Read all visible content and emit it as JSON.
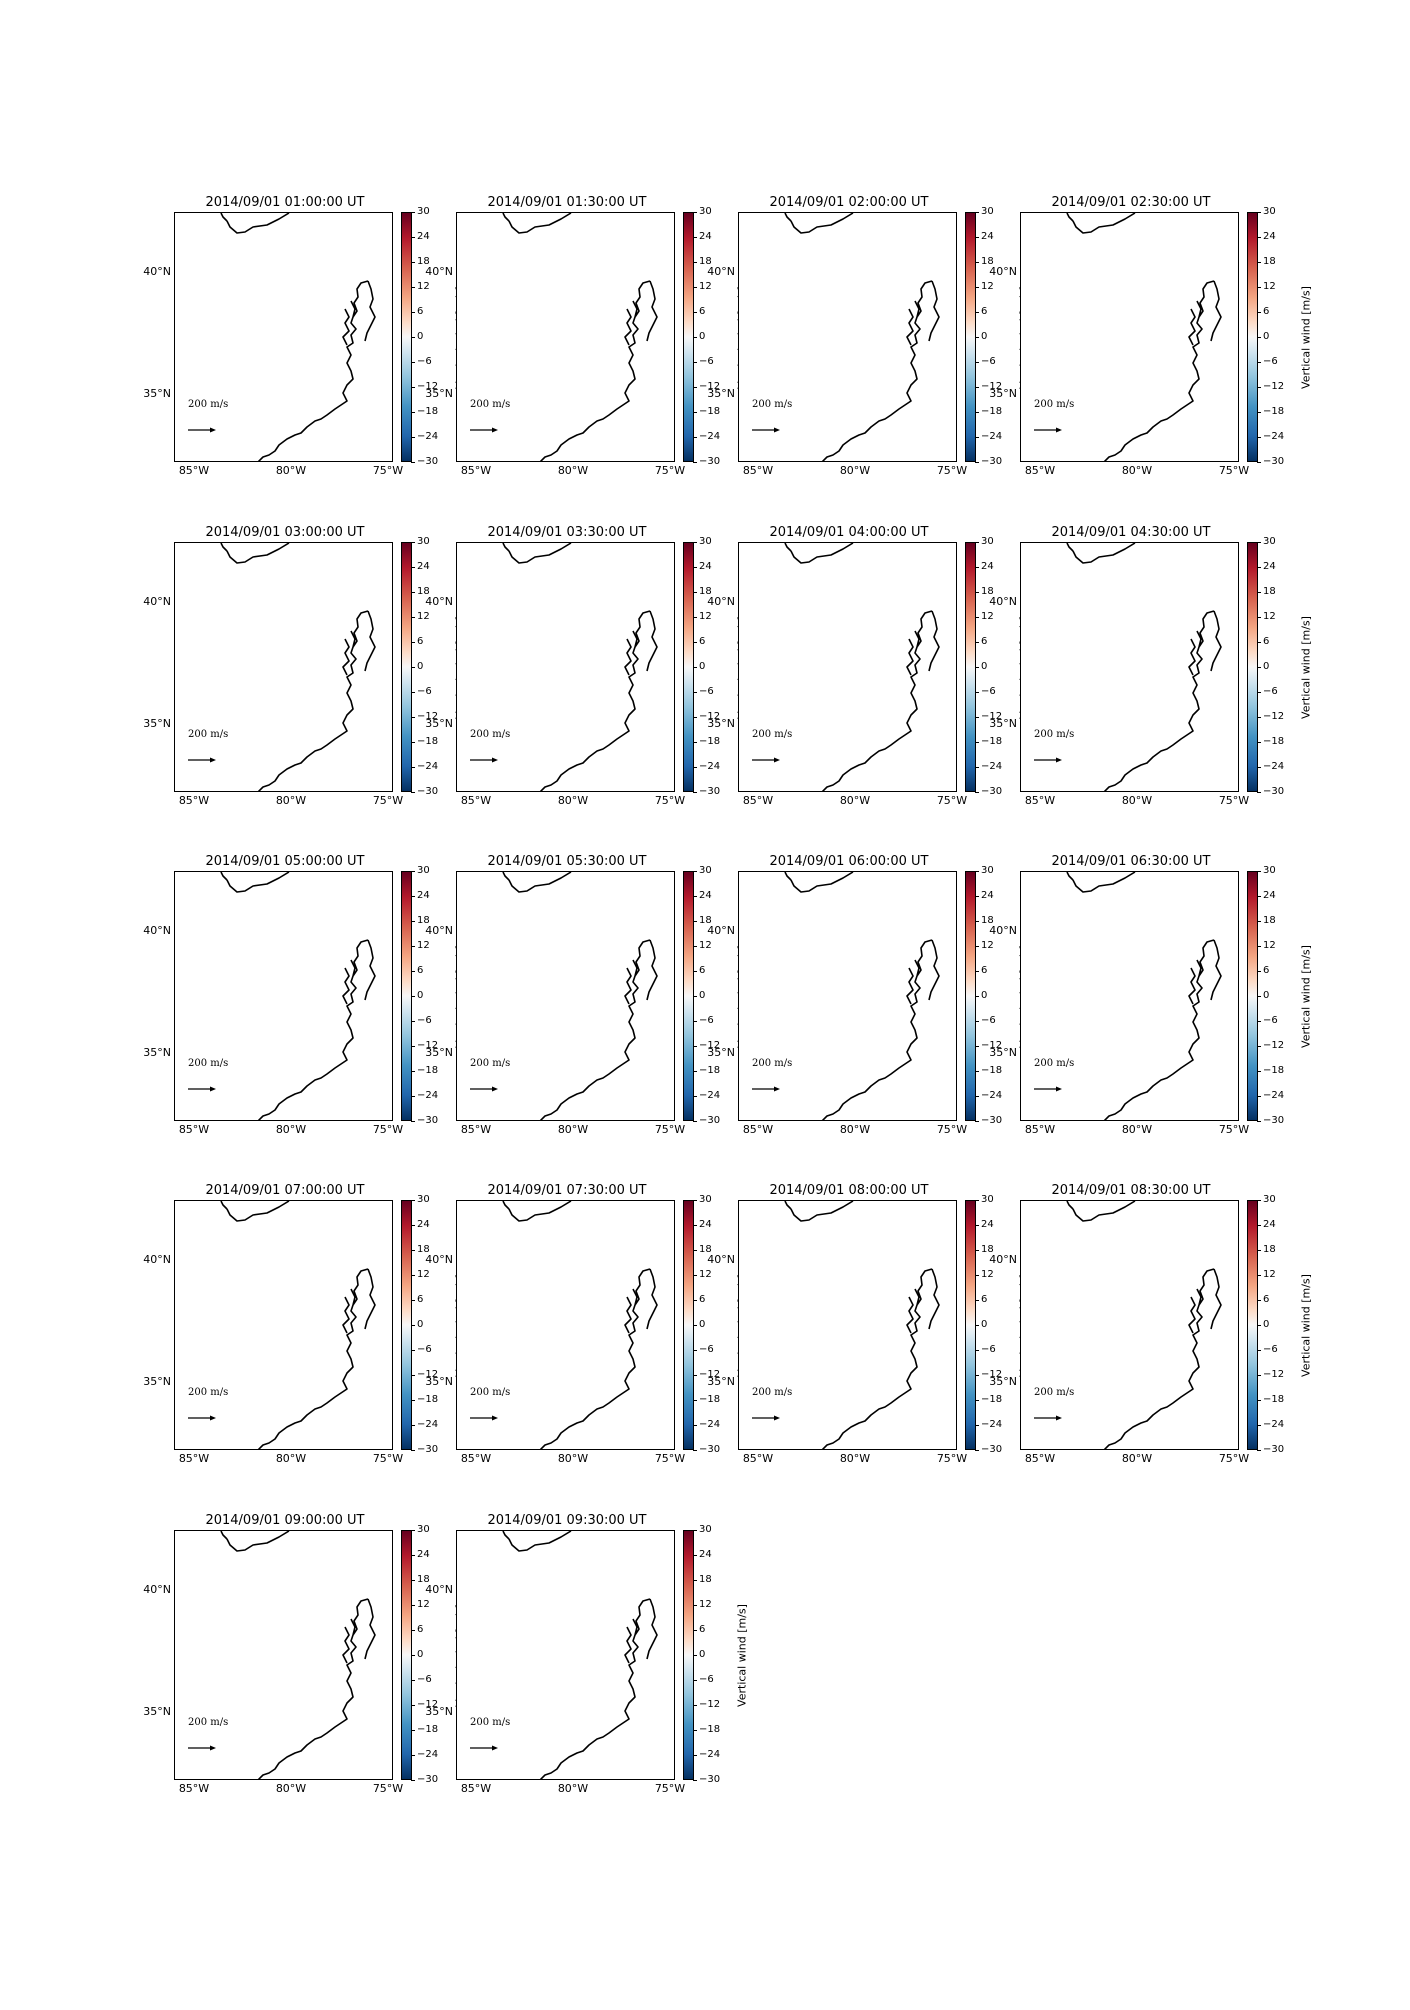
{
  "figure": {
    "panels": [
      {
        "title": "2014/09/01 01:00:00 UT"
      },
      {
        "title": "2014/09/01 01:30:00 UT"
      },
      {
        "title": "2014/09/01 02:00:00 UT"
      },
      {
        "title": "2014/09/01 02:30:00 UT"
      },
      {
        "title": "2014/09/01 03:00:00 UT"
      },
      {
        "title": "2014/09/01 03:30:00 UT"
      },
      {
        "title": "2014/09/01 04:00:00 UT"
      },
      {
        "title": "2014/09/01 04:30:00 UT"
      },
      {
        "title": "2014/09/01 05:00:00 UT"
      },
      {
        "title": "2014/09/01 05:30:00 UT"
      },
      {
        "title": "2014/09/01 06:00:00 UT"
      },
      {
        "title": "2014/09/01 06:30:00 UT"
      },
      {
        "title": "2014/09/01 07:00:00 UT"
      },
      {
        "title": "2014/09/01 07:30:00 UT"
      },
      {
        "title": "2014/09/01 08:00:00 UT"
      },
      {
        "title": "2014/09/01 08:30:00 UT"
      },
      {
        "title": "2014/09/01 09:00:00 UT"
      },
      {
        "title": "2014/09/01 09:30:00 UT"
      }
    ],
    "lat_labels": [
      "40°N",
      "35°N"
    ],
    "lon_labels": [
      "85°W",
      "80°W",
      "75°W"
    ],
    "colorbar": {
      "label": "Vertical wind [m/s]",
      "ticks": [
        "30",
        "24",
        "18",
        "12",
        "6",
        "0",
        "−6",
        "−12",
        "−18",
        "−24",
        "−30"
      ],
      "range": [
        -30,
        30
      ],
      "colormap": "RdBu_r"
    },
    "quiver_key": {
      "label": "200 m/s",
      "value": 200
    }
  }
}
